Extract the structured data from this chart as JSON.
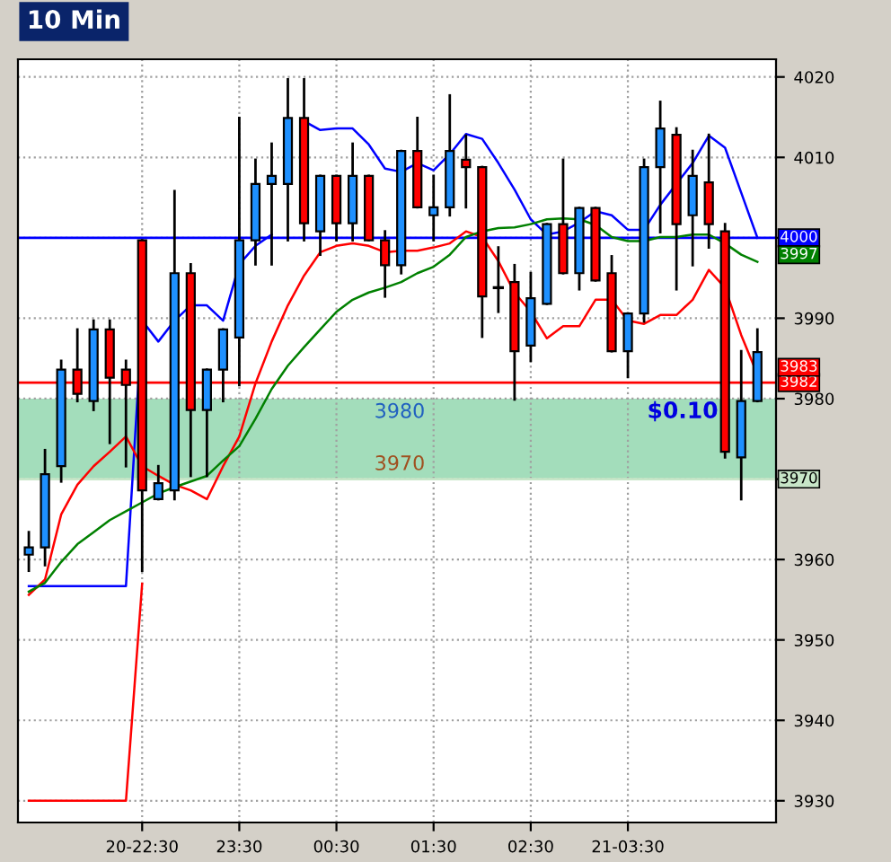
{
  "chart_data": {
    "type": "candlestick",
    "title": "10 Min",
    "categories": [
      null,
      null,
      null,
      null,
      null,
      null,
      null,
      "20-22:30",
      null,
      null,
      null,
      null,
      null,
      "23:30",
      null,
      null,
      null,
      null,
      null,
      "00:30",
      null,
      null,
      null,
      null,
      null,
      "01:30",
      null,
      null,
      null,
      null,
      null,
      "02:30",
      null,
      null,
      null,
      null,
      null,
      "21-03:30",
      null,
      null,
      null,
      null,
      null,
      null,
      null,
      null
    ],
    "ohlc": [
      [
        3960.6,
        3963.4,
        3958.6,
        3961.5
      ],
      [
        3961.5,
        3973.6,
        3959.3,
        3970.6
      ],
      [
        3971.6,
        3984.7,
        3969.7,
        3983.6
      ],
      [
        3983.6,
        3988.6,
        3979.7,
        3980.6
      ],
      [
        3979.7,
        3989.7,
        3978.6,
        3988.6
      ],
      [
        3988.6,
        3989.7,
        3974.5,
        3982.6
      ],
      [
        3983.6,
        3984.7,
        3971.6,
        3981.7
      ],
      [
        3999.7,
        3999.7,
        3958.6,
        3968.6
      ],
      [
        3967.5,
        3971.6,
        3967.5,
        3969.5
      ],
      [
        3968.6,
        4005.8,
        3967.5,
        3995.6
      ],
      [
        3995.6,
        3996.7,
        3970.4,
        3978.6
      ],
      [
        3978.6,
        3983.6,
        3970.4,
        3983.6
      ],
      [
        3983.6,
        3988.6,
        3979.7,
        3988.6
      ],
      [
        3987.6,
        4014.9,
        3981.7,
        3999.7
      ],
      [
        3999.7,
        4009.7,
        3996.7,
        4006.7
      ],
      [
        4006.7,
        4011.7,
        3996.7,
        4007.7
      ],
      [
        4006.7,
        4019.7,
        3999.7,
        4014.9
      ],
      [
        4014.9,
        4019.7,
        3999.7,
        4001.8
      ],
      [
        4000.8,
        4007.7,
        3997.9,
        4007.7
      ],
      [
        4007.7,
        4007.7,
        3999.7,
        4001.8
      ],
      [
        4001.8,
        4011.7,
        3999.7,
        4007.7
      ],
      [
        4007.7,
        4007.7,
        3999.7,
        3999.7
      ],
      [
        3999.7,
        4000.8,
        3992.7,
        3996.6
      ],
      [
        3996.6,
        4010.8,
        3995.6,
        4010.8
      ],
      [
        4010.8,
        4014.9,
        4003.8,
        4003.8
      ],
      [
        4002.8,
        4007.7,
        3999.7,
        4003.8
      ],
      [
        4003.8,
        4017.7,
        4002.8,
        4010.8
      ],
      [
        4009.7,
        4012.7,
        4003.8,
        4008.8
      ],
      [
        4008.8,
        4008.8,
        3987.7,
        3992.7
      ],
      [
        3993.8,
        3998.8,
        3990.8,
        3993.8
      ],
      [
        3994.5,
        3996.6,
        3979.9,
        3985.9
      ],
      [
        3986.6,
        3995.6,
        3984.7,
        3992.5
      ],
      [
        3991.8,
        4001.7,
        3991.8,
        4001.7
      ],
      [
        4001.7,
        4009.7,
        3995.6,
        3995.6
      ],
      [
        3995.6,
        4003.7,
        3993.6,
        4003.7
      ],
      [
        4003.7,
        4003.7,
        3994.7,
        3994.7
      ],
      [
        3995.6,
        3997.7,
        3985.9,
        3985.9
      ],
      [
        3985.9,
        3990.6,
        3982.7,
        3990.6
      ],
      [
        3990.6,
        4009.7,
        3989.6,
        4008.8
      ],
      [
        4008.8,
        4016.9,
        4000.7,
        4013.6
      ],
      [
        4012.8,
        4013.6,
        3993.6,
        4001.7
      ],
      [
        4002.8,
        4010.8,
        3996.6,
        4007.7
      ],
      [
        4006.9,
        4012.8,
        3998.8,
        4001.7
      ],
      [
        4000.8,
        4001.7,
        3972.7,
        3973.4
      ],
      [
        3972.7,
        3985.9,
        3967.5,
        3979.7
      ],
      [
        3979.7,
        3988.6,
        3979.7,
        3985.8
      ]
    ],
    "colors": [
      "#1e90ff",
      "#1e90ff",
      "#1e90ff",
      "#ff0000",
      "#1e90ff",
      "#ff0000",
      "#ff0000",
      "#ff0000",
      "#1e90ff",
      "#1e90ff",
      "#ff0000",
      "#1e90ff",
      "#1e90ff",
      "#1e90ff",
      "#1e90ff",
      "#1e90ff",
      "#1e90ff",
      "#ff0000",
      "#1e90ff",
      "#ff0000",
      "#1e90ff",
      "#ff0000",
      "#ff0000",
      "#1e90ff",
      "#ff0000",
      "#1e90ff",
      "#1e90ff",
      "#ff0000",
      "#ff0000",
      "#000000",
      "#ff0000",
      "#1e90ff",
      "#1e90ff",
      "#ff0000",
      "#1e90ff",
      "#ff0000",
      "#ff0000",
      "#1e90ff",
      "#1e90ff",
      "#1e90ff",
      "#ff0000",
      "#1e90ff",
      "#ff0000",
      "#ff0000",
      "#1e90ff",
      "#1e90ff"
    ],
    "series": [
      {
        "type": "line",
        "color": "#0000ff",
        "values": [
          3956.7,
          3956.7,
          3956.7,
          3956.7,
          3956.7,
          3956.7,
          3956.7,
          3989.7,
          3987.1,
          3989.7,
          3991.6,
          3991.6,
          3989.7,
          3996.7,
          3999.0,
          4000.4,
          null,
          4014.5,
          4013.4,
          4013.6,
          4013.6,
          4011.6,
          4008.6,
          4008.2,
          4009.3,
          4008.4,
          4010.4,
          4012.9,
          4012.3,
          4009.3,
          4006.0,
          4002.3,
          4000.4,
          4000.8,
          4001.9,
          4003.3,
          4002.8,
          4001.0,
          4001.0,
          4004.1,
          4006.7,
          4009.3,
          4012.7,
          4011.2,
          4005.6,
          4000
        ]
      },
      {
        "type": "line",
        "color": "#ff0000",
        "values": [
          3955.6,
          3957.5,
          3965.6,
          3969.3,
          3971.6,
          3973.4,
          3975.3,
          3971.6,
          3970.4,
          3969.3,
          3968.6,
          3967.5,
          3971.6,
          3975.3,
          3981.9,
          3987.1,
          3991.6,
          3995.3,
          3998.2,
          3999.0,
          3999.3,
          3999.0,
          3998.2,
          3998.4,
          3998.4,
          3998.8,
          3999.3,
          4000.8,
          4000.1,
          3997.1,
          3993.2,
          3990.8,
          3987.5,
          3989.0,
          3989.0,
          3992.3,
          3992.3,
          3989.7,
          3989.3,
          3990.4,
          3990.4,
          3992.3,
          3996.0,
          3993.8,
          3987.9,
          3983
        ],
        "value_labels": [
          null,
          null,
          null,
          null,
          null,
          null,
          null,
          null,
          null,
          null,
          null,
          null,
          null,
          null,
          null,
          null,
          null,
          null,
          null,
          null,
          null,
          null,
          null,
          null,
          null,
          null,
          null,
          null,
          null,
          null,
          null,
          null,
          null,
          null,
          null,
          null,
          null,
          null,
          null,
          null,
          null,
          null,
          null,
          null,
          null,
          "3983"
        ]
      },
      {
        "type": "line",
        "color": "#008000",
        "values": [
          3956.0,
          3957.1,
          3959.7,
          3961.9,
          3963.4,
          3964.9,
          3966.0,
          3967.1,
          3968.2,
          3969.0,
          3969.7,
          3970.4,
          3972.3,
          3974.1,
          3977.5,
          3981.2,
          3984.1,
          3986.4,
          3988.6,
          3990.8,
          3992.3,
          3993.2,
          3993.8,
          3994.5,
          3995.6,
          3996.4,
          3997.9,
          4000.1,
          4000.8,
          4001.2,
          4001.3,
          4001.7,
          4002.3,
          4002.4,
          4002.3,
          4001.6,
          4000.1,
          3999.6,
          3999.6,
          4000.1,
          4000.1,
          4000.4,
          4000.4,
          3999.3,
          3997.9,
          3997
        ],
        "value_labels": [
          null,
          null,
          null,
          null,
          null,
          null,
          null,
          null,
          null,
          null,
          null,
          null,
          null,
          null,
          null,
          null,
          null,
          null,
          null,
          null,
          null,
          null,
          null,
          null,
          null,
          null,
          null,
          null,
          null,
          null,
          null,
          null,
          null,
          null,
          null,
          null,
          null,
          null,
          null,
          null,
          null,
          null,
          null,
          null,
          null,
          "3997"
        ]
      },
      {
        "type": "line",
        "color": "#ff0000",
        "values": [
          3930,
          3930,
          3930,
          3930,
          3930,
          3930,
          3930,
          3957,
          null,
          null,
          null,
          null,
          null,
          null,
          null,
          null,
          null,
          null,
          null,
          null,
          null,
          null,
          null,
          null,
          null,
          null,
          null,
          null,
          null,
          null,
          null,
          null,
          null,
          null,
          null,
          null,
          null,
          null,
          null,
          null,
          null,
          null,
          null,
          null,
          null,
          null
        ]
      }
    ],
    "ref_lines": [
      {
        "axis": "y",
        "value": 4000,
        "label": "4000",
        "color": "#0000ff"
      },
      {
        "axis": "y",
        "value": 3982,
        "label": "3982",
        "color": "#ff0000"
      },
      {
        "axis": "y",
        "value": 3970,
        "label": "3970",
        "color": "#c8e6c8"
      }
    ],
    "bands": [
      {
        "axis": "y",
        "from": 3970,
        "to": 3980,
        "label": "$0.10",
        "color": "#99d9b4"
      }
    ],
    "annotations": [
      {
        "text": "3980",
        "y": 3980
      },
      {
        "text": "3970",
        "y": 3970
      }
    ],
    "ylim": [
      3927.3,
      4022.2
    ],
    "yticks": [
      3930,
      3940,
      3950,
      3960,
      {
        "value": 3970,
        "label": null
      },
      3980,
      3990,
      {
        "value": 4000,
        "label": null
      },
      4010,
      4020
    ],
    "grid": true
  }
}
